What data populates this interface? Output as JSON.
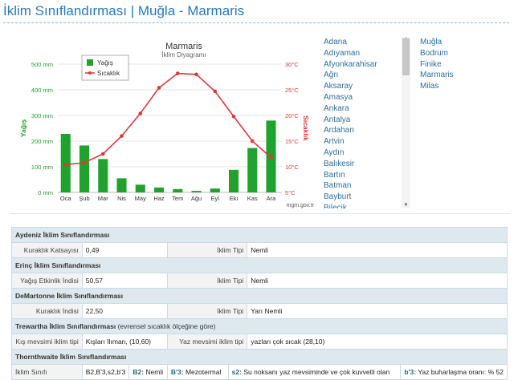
{
  "page": {
    "title": "İklim Sınıflandırması | Muğla - Marmaris"
  },
  "provinces": [
    "Adana",
    "Adıyaman",
    "Afyonkarahisar",
    "Ağrı",
    "Aksaray",
    "Amasya",
    "Ankara",
    "Antalya",
    "Ardahan",
    "Artvin",
    "Aydın",
    "Balıkesir",
    "Bartın",
    "Batman",
    "Bayburt",
    "Bilecik"
  ],
  "districts": [
    "Muğla",
    "Bodrum",
    "Finike",
    "Marmaris",
    "Milas"
  ],
  "chart_data": {
    "type": "bar",
    "title": "Marmaris",
    "subtitle": "İklim Diyagramı",
    "categories": [
      "Oca",
      "Şub",
      "Mar",
      "Nis",
      "May",
      "Haz",
      "Tem",
      "Ağu",
      "Eyl",
      "Eki",
      "Kas",
      "Ara"
    ],
    "series": [
      {
        "name": "Yağış",
        "type": "bar",
        "axis": "left",
        "color": "#21a12e",
        "values": [
          228,
          183,
          130,
          55,
          30,
          19,
          13,
          6,
          15,
          88,
          173,
          280
        ]
      },
      {
        "name": "Sıcaklık",
        "type": "line",
        "axis": "right",
        "color": "#e0363b",
        "values": [
          10.4,
          10.8,
          12.5,
          16.0,
          20.4,
          25.4,
          28.2,
          28.0,
          24.7,
          19.8,
          15.0,
          11.8
        ]
      }
    ],
    "ylabel": "Yağış",
    "y2label": "Sıcaklık",
    "ylim": [
      0,
      500
    ],
    "y2lim": [
      5,
      30
    ],
    "yticks": [
      "0 mm",
      "100 mm",
      "200 mm",
      "300 mm",
      "400 mm",
      "500 mm"
    ],
    "y2ticks": [
      "5°C",
      "10°C",
      "15°C",
      "20°C",
      "25°C",
      "30°C"
    ],
    "legend_position": "top-left",
    "credit": "mgm.gov.tr"
  },
  "table": {
    "aydeniz": {
      "header": "Aydeniz İklim Sınıflandırması",
      "label1": "Kuraklık Katsayısı",
      "value1": "0,49",
      "label2": "İklim Tipi",
      "value2": "Nemli"
    },
    "erinc": {
      "header": "Erinç İklim Sınıflandırması",
      "label1": "Yağış Etkinlik İndisi",
      "value1": "50,57",
      "label2": "İklim Tipi",
      "value2": "Nemli"
    },
    "demartonne": {
      "header": "DeMartonne İklim Sınıflandırması",
      "label1": "Kuraklık İndisi",
      "value1": "22,50",
      "label2": "İklim Tipi",
      "value2": "Yarı Nemli"
    },
    "trewartha": {
      "header": "Trewartha İklim Sınıflandırması",
      "header_note": "(evrensel sıcaklık ölçeğine göre)",
      "label1": "Kış mevsimi iklim tipi",
      "value1": "Kışları Ilıman, (10,60)",
      "label2": "Yaz mevsimi iklim tipi",
      "value2": "yazları çok sıcak (28,10)"
    },
    "thornthwaite": {
      "header": "Thornthwaite İklim Sınıflandırması",
      "label1": "İklim Sınıfı",
      "value1": "B2,B'3,s2,b'3",
      "c1_code": "B2:",
      "c1_text": "Nemli",
      "c2_code": "B'3:",
      "c2_text": "Mezotermal",
      "c3_code": "s2:",
      "c3_text": "Su noksanı yaz mevsiminde ve çok kuvvetli olan",
      "c4_code": "b'3:",
      "c4_text": "Yaz buharlaşma oranı: % 52"
    }
  }
}
